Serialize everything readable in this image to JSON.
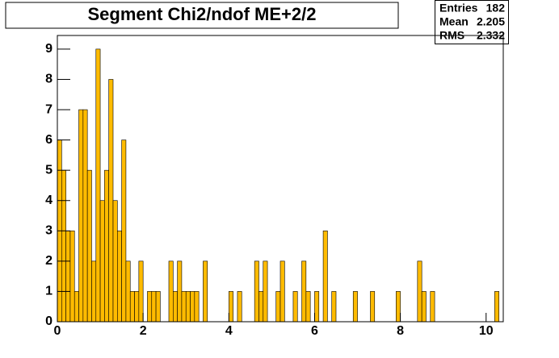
{
  "chart_data": {
    "type": "histogram",
    "title": "Segment Chi2/ndof ME+2/2",
    "bins": [
      0,
      0.1,
      0.2,
      0.3,
      0.4,
      0.5,
      0.6,
      0.7,
      0.8,
      0.9,
      1.0,
      1.1,
      1.2,
      1.3,
      1.4,
      1.5,
      1.6,
      1.7,
      1.8,
      1.9,
      2.0,
      2.1,
      2.2,
      2.3,
      2.4,
      2.5,
      2.6,
      2.7,
      2.8,
      2.9,
      3.0,
      3.1,
      3.2,
      3.3,
      3.4,
      3.5,
      3.6,
      3.7,
      3.8,
      3.9,
      4.0,
      4.1,
      4.2,
      4.3,
      4.4,
      4.5,
      4.6,
      4.7,
      4.8,
      4.9,
      5.0,
      5.1,
      5.2,
      5.3,
      5.4,
      5.5,
      5.6,
      5.7,
      5.8,
      5.9,
      6.0,
      6.1,
      6.2,
      6.3,
      6.4,
      6.5,
      6.6,
      6.7,
      6.8,
      6.9,
      7.0,
      7.1,
      7.2,
      7.3,
      7.4,
      7.5,
      7.6,
      7.7,
      7.8,
      7.9,
      8.0,
      8.1,
      8.2,
      8.3,
      8.4,
      8.5,
      8.6,
      8.7,
      8.8,
      8.9,
      9.0,
      9.1,
      9.2,
      9.3,
      9.4,
      9.5,
      9.6,
      9.7,
      9.8,
      9.9,
      10.0,
      10.1,
      10.2,
      10.3,
      10.4
    ],
    "values": [
      6,
      5,
      3,
      3,
      1,
      7,
      7,
      5,
      2,
      9,
      4,
      5,
      8,
      4,
      3,
      6,
      2,
      1,
      1,
      2,
      0,
      1,
      1,
      1,
      0,
      0,
      2,
      1,
      2,
      1,
      1,
      1,
      1,
      0,
      2,
      0,
      0,
      0,
      0,
      0,
      1,
      0,
      1,
      0,
      0,
      0,
      2,
      1,
      2,
      0,
      0,
      1,
      2,
      0,
      0,
      1,
      0,
      2,
      1,
      0,
      1,
      0,
      3,
      0,
      1,
      0,
      0,
      0,
      0,
      1,
      0,
      0,
      0,
      1,
      0,
      0,
      0,
      0,
      0,
      1,
      0,
      0,
      0,
      0,
      2,
      1,
      0,
      1,
      0,
      0,
      0,
      0,
      0,
      0,
      0,
      0,
      0,
      0,
      0,
      0,
      0,
      0,
      1,
      0
    ],
    "color": "#ffbb00",
    "xlim": [
      0,
      10.4
    ],
    "xticks": [
      0,
      2,
      4,
      6,
      8,
      10
    ],
    "ylim": [
      0,
      9.45
    ],
    "yticks": [
      0,
      1,
      2,
      3,
      4,
      5,
      6,
      7,
      8,
      9
    ],
    "stats": [
      {
        "label": "Entries",
        "value": 182
      },
      {
        "label": "Mean",
        "value": 2.205
      },
      {
        "label": "RMS",
        "value": 2.332
      }
    ]
  }
}
